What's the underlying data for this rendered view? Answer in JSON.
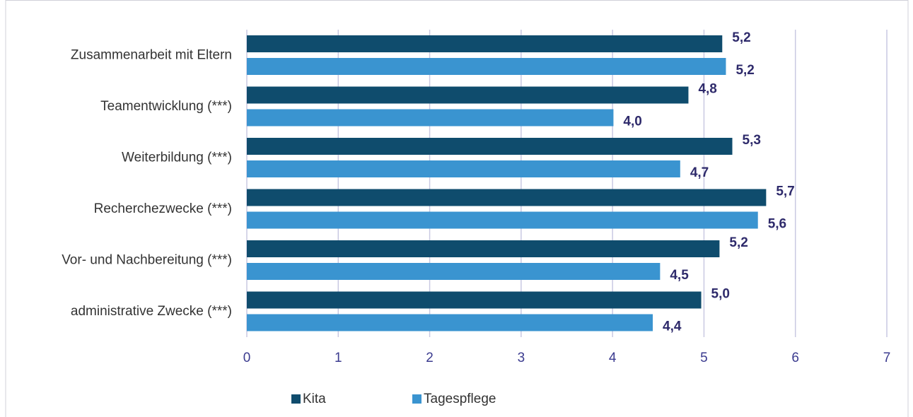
{
  "chart_data": {
    "type": "bar",
    "orientation": "horizontal",
    "categories": [
      "Zusammenarbeit mit Eltern",
      "Teamentwicklung (***)",
      "Weiterbildung (***)",
      "Recherchezwecke (***)",
      "Vor- und Nachbereitung (***)",
      "administrative Zwecke (***)"
    ],
    "series": [
      {
        "name": "Kita",
        "color": "#0f4c6d",
        "values": [
          5.2,
          4.83,
          5.31,
          5.68,
          5.17,
          4.97
        ],
        "value_labels": [
          "5,2",
          "4,8",
          "5,3",
          "5,7",
          "5,2",
          "5,0"
        ]
      },
      {
        "name": "Tagespflege",
        "color": "#3a94d0",
        "values": [
          5.24,
          4.01,
          4.74,
          5.59,
          4.52,
          4.44
        ],
        "value_labels": [
          "5,2",
          "4,0",
          "4,7",
          "5,6",
          "4,5",
          "4,4"
        ]
      }
    ],
    "xlim": [
      0,
      7
    ],
    "xticks": [
      0,
      1,
      2,
      3,
      4,
      5,
      6,
      7
    ],
    "grid": true,
    "legend": "bottom"
  }
}
